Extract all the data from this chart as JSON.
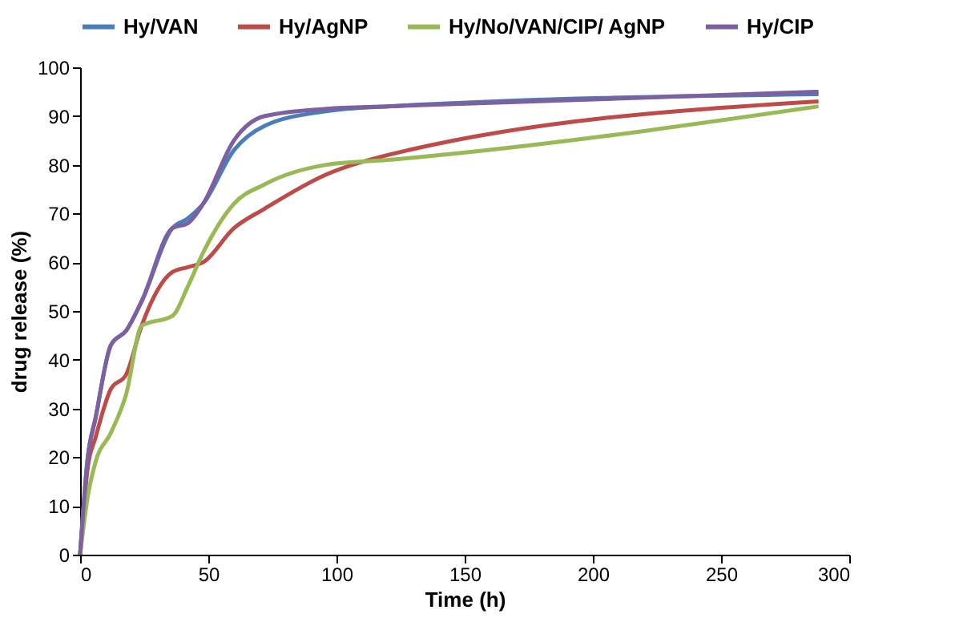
{
  "chart_data": {
    "type": "line",
    "xlabel": "Time (h)",
    "ylabel": "drug release (%)",
    "xlim": [
      0,
      300
    ],
    "xticks": [
      0,
      50,
      100,
      150,
      200,
      250,
      300
    ],
    "ylim": [
      0,
      100
    ],
    "yticks": [
      0,
      10,
      20,
      30,
      40,
      50,
      60,
      70,
      80,
      90,
      100
    ],
    "grid": false,
    "legend": "top",
    "marker": "none",
    "line_style": "solid",
    "x": [
      0,
      3,
      6,
      12,
      18,
      24,
      36,
      42,
      48,
      60,
      72,
      96,
      120,
      288
    ],
    "series": [
      {
        "name": "Hy/VAN",
        "color": "#4a7ebb",
        "values": [
          0,
          20,
          28,
          43,
          46,
          52,
          67,
          69,
          72,
          83,
          88,
          91,
          92,
          94.5
        ]
      },
      {
        "name": "Hy/AgNP",
        "color": "#be4b48",
        "values": [
          0,
          18,
          24,
          34,
          37,
          47,
          58,
          59,
          60,
          67,
          71,
          78,
          82,
          93
        ]
      },
      {
        "name": "Hy/No/VAN/CIP/ AgNP",
        "color": "#98b954",
        "values": [
          0,
          12,
          19,
          25,
          33,
          47,
          49,
          55,
          62,
          72,
          76,
          80,
          81,
          92
        ]
      },
      {
        "name": "Hy/CIP",
        "color": "#7d60a0",
        "values": [
          0,
          20,
          28,
          43,
          46,
          52,
          67,
          68,
          72,
          85,
          90,
          91.5,
          92,
          95
        ]
      }
    ]
  }
}
